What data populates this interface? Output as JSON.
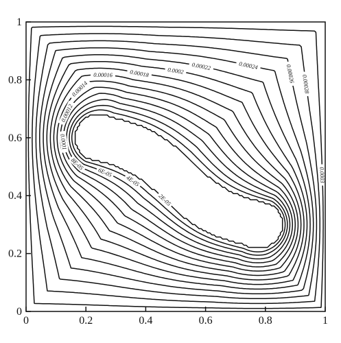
{
  "chart_data": {
    "type": "contour",
    "title": "",
    "xlabel": "",
    "ylabel": "",
    "xlim": [
      0,
      1
    ],
    "ylim": [
      0,
      1
    ],
    "x_ticks": [
      "0",
      "0.2",
      "0.4",
      "0.6",
      "0.8",
      "1"
    ],
    "y_ticks": [
      "0",
      "0.2",
      "0.4",
      "0.6",
      "0.8",
      "1"
    ],
    "grid": false,
    "line_color": "#111111",
    "levels": [
      {
        "value": 0.0003,
        "label": "0.0003"
      },
      {
        "value": 0.00028,
        "label": "0.00028"
      },
      {
        "value": 0.00026,
        "label": "0.00026"
      },
      {
        "value": 0.00024,
        "label": "0.00024"
      },
      {
        "value": 0.00022,
        "label": "0.00022"
      },
      {
        "value": 0.0002,
        "label": "0.0002"
      },
      {
        "value": 0.00018,
        "label": "0.00018"
      },
      {
        "value": 0.00016,
        "label": "0.00016"
      },
      {
        "value": 0.00014,
        "label": "0.00014"
      },
      {
        "value": 0.00012,
        "label": "0.00012"
      },
      {
        "value": 0.0001,
        "label": "0.0001"
      },
      {
        "value": 8e-05,
        "label": "8E-05"
      },
      {
        "value": 6e-05,
        "label": "6E-05"
      },
      {
        "value": 4e-05,
        "label": "4E-05"
      },
      {
        "value": 2e-05,
        "label": "2E-05"
      }
    ],
    "field_model": {
      "description_free": true,
      "max_value": 0.000312,
      "centers": [
        [
          0.245,
          0.6
        ],
        [
          0.775,
          0.3
        ]
      ],
      "center_radius": 0.085
    }
  }
}
